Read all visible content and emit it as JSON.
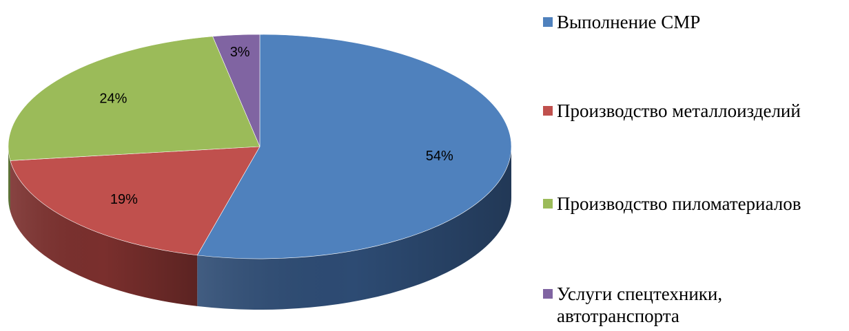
{
  "chart_data": {
    "type": "pie",
    "three_d": true,
    "title": "",
    "start_angle_deg": 0,
    "direction": "clockwise",
    "slices": [
      {
        "name": "Выполнение СМР",
        "value": 54,
        "label": "54%",
        "color": "#4F81BD",
        "side_color": "#2D4B73"
      },
      {
        "name": "Производство металлоизделий",
        "value": 19,
        "label": "19%",
        "color": "#C0504D",
        "side_color": "#7A2F2D"
      },
      {
        "name": "Производство пиломатериалов",
        "value": 24,
        "label": "24%",
        "color": "#9BBB59",
        "side_color": "#5E7535"
      },
      {
        "name": "Услуги спецтехники, автотранспорта",
        "value": 3,
        "label": "3%",
        "color": "#8064A2",
        "side_color": "#4B3A62"
      }
    ],
    "legend": {
      "position": "right",
      "items": [
        {
          "lines": [
            "Выполнение СМР"
          ],
          "color": "#4F81BD"
        },
        {
          "lines": [
            "Производство металлоизделий"
          ],
          "color": "#C0504D"
        },
        {
          "lines": [
            "Производство пиломатериалов"
          ],
          "color": "#9BBB59"
        },
        {
          "lines": [
            "Услуги спецтехники,",
            "автотранспорта"
          ],
          "color": "#8064A2"
        }
      ]
    }
  }
}
